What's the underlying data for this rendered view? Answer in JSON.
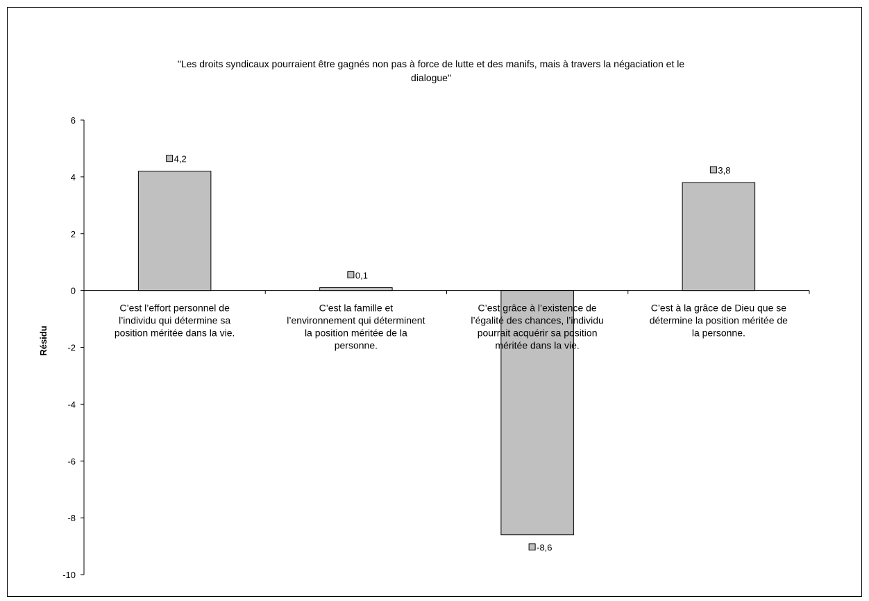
{
  "chart_data": {
    "type": "bar",
    "title": "\"Les droits syndicaux pourraient être gagnés non pas à force de lutte et des manifs, mais à travers la négaciation et le dialogue\"",
    "title_lines": [
      "\"Les droits syndicaux pourraient être gagnés non pas à force de lutte et des manifs, mais à travers la négaciation et le",
      "dialogue\""
    ],
    "ylabel": "Résidu",
    "xlabel": "",
    "ylim": [
      -10,
      6
    ],
    "yticks": [
      6,
      4,
      2,
      0,
      -2,
      -4,
      -6,
      -8,
      -10
    ],
    "ytick_labels": [
      "6",
      "4",
      "2",
      "0",
      "-2",
      "-4",
      "-6",
      "-8",
      "-10"
    ],
    "categories": [
      [
        "C’est l’effort personnel de",
        "l’individu qui détermine sa",
        "position méritée dans la vie."
      ],
      [
        "C’est la famille et",
        "l’environnement qui déterminent",
        "la position méritée de la",
        "personne."
      ],
      [
        "C’est grâce à l’existence de",
        "l’égalité des chances, l’individu",
        "pourrait acquérir sa position",
        "méritée dans la vie."
      ],
      [
        "C’est à la grâce de Dieu que se",
        "détermine la position méritée de",
        "la personne."
      ]
    ],
    "values": [
      4.2,
      0.1,
      -8.6,
      3.8
    ],
    "data_labels": [
      "4,2",
      "0,1",
      "-8,6",
      "3,8"
    ],
    "bar_color": "#c0c0c0",
    "grid": false,
    "legend": "none"
  }
}
